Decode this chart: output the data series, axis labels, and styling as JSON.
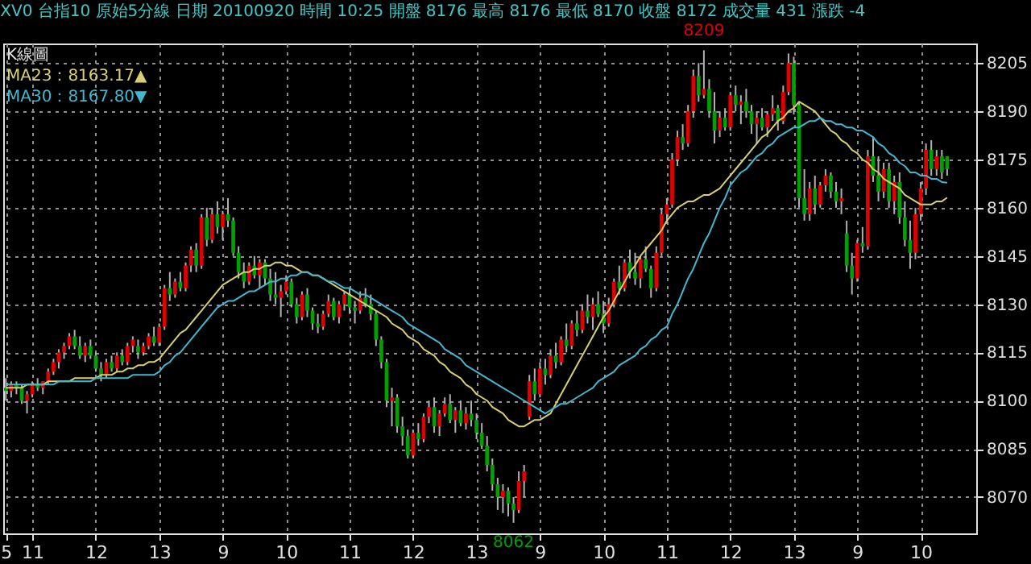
{
  "chart_data": {
    "type": "candlestick",
    "title": "XV0 台指10 原始5分線 日期 20100920 時間 10:25 開盤 8176 最高 8176 最低 8170 收盤 8172 成交量 431 漲跌 -4",
    "legend_title": "K線圖",
    "legend": "top left",
    "grid": true,
    "annotations": [
      {
        "text": "8209",
        "y": 8209
      },
      {
        "text": "8062",
        "y": 8062
      }
    ],
    "ylim": [
      8058.7,
      8211.1
    ],
    "yticks": [
      8070,
      8085,
      8100,
      8115,
      8130,
      8145,
      8160,
      8175,
      8190,
      8205
    ],
    "categories": [
      "5",
      null,
      null,
      null,
      null,
      "11",
      null,
      null,
      null,
      null,
      null,
      null,
      null,
      null,
      null,
      null,
      null,
      "12",
      null,
      null,
      null,
      null,
      null,
      null,
      null,
      null,
      null,
      null,
      null,
      "13",
      null,
      null,
      null,
      null,
      null,
      null,
      null,
      null,
      null,
      null,
      null,
      "9",
      null,
      null,
      null,
      null,
      null,
      null,
      null,
      null,
      null,
      null,
      null,
      "10",
      null,
      null,
      null,
      null,
      null,
      null,
      null,
      null,
      null,
      null,
      null,
      "11",
      null,
      null,
      null,
      null,
      null,
      null,
      null,
      null,
      null,
      null,
      null,
      "12",
      null,
      null,
      null,
      null,
      null,
      null,
      null,
      null,
      null,
      null,
      null,
      "13",
      null,
      null,
      null,
      null,
      null,
      null,
      null,
      null,
      null,
      null,
      null,
      "9",
      null,
      null,
      null,
      null,
      null,
      null,
      null,
      null,
      null,
      null,
      null,
      "10",
      null,
      null,
      null,
      null,
      null,
      null,
      null,
      null,
      null,
      null,
      null,
      "11",
      null,
      null,
      null,
      null,
      null,
      null,
      null,
      null,
      null,
      null,
      null,
      "12",
      null,
      null,
      null,
      null,
      null,
      null,
      null,
      null,
      null,
      null,
      null,
      "13",
      null,
      null,
      null,
      null,
      null,
      null,
      null,
      null,
      null,
      null,
      null,
      "9",
      null,
      null,
      null,
      null,
      null,
      null,
      null,
      null,
      null,
      null,
      null,
      "10",
      null,
      null,
      null,
      null,
      null
    ],
    "color": "#b0b0b0",
    "ohlc": [
      [
        8104,
        8107,
        8100,
        8103
      ],
      [
        8103,
        8106,
        8101,
        8105
      ],
      [
        8105,
        8106,
        8102,
        8104
      ],
      [
        8104,
        8105,
        8099,
        8100
      ],
      [
        8100,
        8103,
        8096,
        8102
      ],
      [
        8102,
        8106,
        8101,
        8105
      ],
      [
        8105,
        8107,
        8103,
        8104
      ],
      [
        8104,
        8106,
        8102,
        8106
      ],
      [
        8106,
        8110,
        8105,
        8109
      ],
      [
        8109,
        8113,
        8108,
        8112
      ],
      [
        8112,
        8116,
        8110,
        8115
      ],
      [
        8115,
        8118,
        8113,
        8117
      ],
      [
        8117,
        8121,
        8116,
        8120
      ],
      [
        8120,
        8122,
        8116,
        8117
      ],
      [
        8117,
        8120,
        8113,
        8114
      ],
      [
        8114,
        8118,
        8112,
        8117
      ],
      [
        8117,
        8119,
        8113,
        8114
      ],
      [
        8114,
        8115,
        8109,
        8110
      ],
      [
        8110,
        8112,
        8106,
        8108
      ],
      [
        8108,
        8113,
        8107,
        8112
      ],
      [
        8112,
        8114,
        8109,
        8110
      ],
      [
        8110,
        8115,
        8109,
        8114
      ],
      [
        8114,
        8116,
        8111,
        8112
      ],
      [
        8112,
        8118,
        8111,
        8117
      ],
      [
        8117,
        8120,
        8115,
        8119
      ],
      [
        8117,
        8119,
        8113,
        8115
      ],
      [
        8115,
        8118,
        8114,
        8117
      ],
      [
        8117,
        8121,
        8116,
        8120
      ],
      [
        8120,
        8123,
        8117,
        8118
      ],
      [
        8118,
        8124,
        8117,
        8123
      ],
      [
        8123,
        8136,
        8122,
        8135
      ],
      [
        8135,
        8140,
        8131,
        8133
      ],
      [
        8133,
        8138,
        8132,
        8137
      ],
      [
        8137,
        8140,
        8134,
        8135
      ],
      [
        8135,
        8143,
        8134,
        8142
      ],
      [
        8142,
        8148,
        8140,
        8147
      ],
      [
        8147,
        8149,
        8140,
        8142
      ],
      [
        8142,
        8158,
        8141,
        8157
      ],
      [
        8157,
        8160,
        8148,
        8150
      ],
      [
        8150,
        8160,
        8149,
        8158
      ],
      [
        8158,
        8162,
        8152,
        8154
      ],
      [
        8154,
        8159,
        8150,
        8158
      ],
      [
        8158,
        8163,
        8154,
        8156
      ],
      [
        8156,
        8157,
        8145,
        8146
      ],
      [
        8146,
        8148,
        8138,
        8140
      ],
      [
        8140,
        8143,
        8135,
        8137
      ],
      [
        8137,
        8143,
        8136,
        8142
      ],
      [
        8142,
        8145,
        8138,
        8139
      ],
      [
        8139,
        8144,
        8135,
        8143
      ],
      [
        8143,
        8144,
        8136,
        8138
      ],
      [
        8138,
        8141,
        8131,
        8133
      ],
      [
        8133,
        8140,
        8130,
        8132
      ],
      [
        8132,
        8136,
        8126,
        8134
      ],
      [
        8134,
        8139,
        8133,
        8137
      ],
      [
        8137,
        8138,
        8129,
        8130
      ],
      [
        8130,
        8132,
        8124,
        8126
      ],
      [
        8126,
        8134,
        8125,
        8133
      ],
      [
        8133,
        8135,
        8126,
        8128
      ],
      [
        8128,
        8129,
        8122,
        8124
      ],
      [
        8124,
        8127,
        8121,
        8123
      ],
      [
        8123,
        8128,
        8122,
        8127
      ],
      [
        8127,
        8133,
        8126,
        8131
      ],
      [
        8131,
        8132,
        8125,
        8126
      ],
      [
        8126,
        8131,
        8124,
        8130
      ],
      [
        8130,
        8134,
        8128,
        8133
      ],
      [
        8133,
        8135,
        8127,
        8129
      ],
      [
        8129,
        8131,
        8124,
        8128
      ],
      [
        8128,
        8134,
        8127,
        8132
      ],
      [
        8132,
        8135,
        8129,
        8130
      ],
      [
        8130,
        8133,
        8125,
        8127
      ],
      [
        8127,
        8128,
        8117,
        8119
      ],
      [
        8119,
        8120,
        8110,
        8112
      ],
      [
        8112,
        8113,
        8098,
        8100
      ],
      [
        8100,
        8104,
        8092,
        8101
      ],
      [
        8101,
        8102,
        8090,
        8092
      ],
      [
        8092,
        8095,
        8086,
        8089
      ],
      [
        8089,
        8091,
        8082,
        8083
      ],
      [
        8083,
        8091,
        8082,
        8090
      ],
      [
        8090,
        8093,
        8086,
        8088
      ],
      [
        8088,
        8096,
        8087,
        8095
      ],
      [
        8095,
        8100,
        8093,
        8098
      ],
      [
        8098,
        8101,
        8090,
        8092
      ],
      [
        8092,
        8097,
        8089,
        8096
      ],
      [
        8096,
        8101,
        8095,
        8099
      ],
      [
        8099,
        8102,
        8093,
        8094
      ],
      [
        8094,
        8098,
        8090,
        8097
      ],
      [
        8097,
        8100,
        8092,
        8093
      ],
      [
        8093,
        8098,
        8091,
        8096
      ],
      [
        8096,
        8100,
        8092,
        8094
      ],
      [
        8094,
        8096,
        8088,
        8090
      ],
      [
        8090,
        8093,
        8085,
        8086
      ],
      [
        8086,
        8089,
        8078,
        8080
      ],
      [
        8080,
        8082,
        8072,
        8074
      ],
      [
        8074,
        8076,
        8066,
        8070
      ],
      [
        8070,
        8074,
        8065,
        8072
      ],
      [
        8072,
        8073,
        8064,
        8068
      ],
      [
        8068,
        8070,
        8062,
        8066
      ],
      [
        8066,
        8078,
        8065,
        8075
      ],
      [
        8075,
        8080,
        8070,
        8078
      ],
      [
        8095,
        8108,
        8094,
        8106
      ],
      [
        8106,
        8110,
        8100,
        8102
      ],
      [
        8102,
        8112,
        8101,
        8110
      ],
      [
        8110,
        8113,
        8105,
        8108
      ],
      [
        8108,
        8116,
        8107,
        8114
      ],
      [
        8114,
        8118,
        8110,
        8112
      ],
      [
        8112,
        8120,
        8111,
        8119
      ],
      [
        8119,
        8124,
        8115,
        8117
      ],
      [
        8117,
        8125,
        8116,
        8124
      ],
      [
        8124,
        8128,
        8120,
        8122
      ],
      [
        8122,
        8130,
        8121,
        8128
      ],
      [
        8128,
        8133,
        8124,
        8126
      ],
      [
        8126,
        8132,
        8122,
        8130
      ],
      [
        8130,
        8134,
        8126,
        8127
      ],
      [
        8127,
        8131,
        8121,
        8124
      ],
      [
        8124,
        8132,
        8123,
        8130
      ],
      [
        8130,
        8138,
        8129,
        8137
      ],
      [
        8137,
        8142,
        8133,
        8135
      ],
      [
        8135,
        8144,
        8134,
        8143
      ],
      [
        8143,
        8147,
        8138,
        8140
      ],
      [
        8140,
        8146,
        8136,
        8138
      ],
      [
        8138,
        8145,
        8135,
        8144
      ],
      [
        8144,
        8148,
        8140,
        8141
      ],
      [
        8141,
        8142,
        8132,
        8135
      ],
      [
        8135,
        8148,
        8134,
        8146
      ],
      [
        8146,
        8160,
        8145,
        8158
      ],
      [
        8158,
        8163,
        8155,
        8161
      ],
      [
        8161,
        8177,
        8160,
        8175
      ],
      [
        8175,
        8184,
        8173,
        8182
      ],
      [
        8182,
        8186,
        8178,
        8180
      ],
      [
        8180,
        8192,
        8179,
        8190
      ],
      [
        8190,
        8203,
        8188,
        8201
      ],
      [
        8201,
        8205,
        8193,
        8195
      ],
      [
        8195,
        8209,
        8194,
        8197
      ],
      [
        8197,
        8200,
        8188,
        8190
      ],
      [
        8190,
        8196,
        8180,
        8184
      ],
      [
        8184,
        8190,
        8182,
        8188
      ],
      [
        8188,
        8191,
        8184,
        8185
      ],
      [
        8185,
        8196,
        8184,
        8195
      ],
      [
        8195,
        8198,
        8190,
        8192
      ],
      [
        8192,
        8195,
        8186,
        8193
      ],
      [
        8193,
        8197,
        8188,
        8190
      ],
      [
        8190,
        8192,
        8183,
        8186
      ],
      [
        8186,
        8190,
        8180,
        8188
      ],
      [
        8188,
        8191,
        8184,
        8185
      ],
      [
        8185,
        8190,
        8182,
        8189
      ],
      [
        8189,
        8195,
        8187,
        8191
      ],
      [
        8191,
        8192,
        8184,
        8187
      ],
      [
        8187,
        8198,
        8186,
        8196
      ],
      [
        8196,
        8208,
        8195,
        8205
      ],
      [
        8205,
        8207,
        8189,
        8192
      ],
      [
        8192,
        8193,
        8160,
        8163
      ],
      [
        8163,
        8172,
        8156,
        8158
      ],
      [
        8158,
        8168,
        8156,
        8166
      ],
      [
        8166,
        8170,
        8158,
        8161
      ],
      [
        8161,
        8168,
        8160,
        8167
      ],
      [
        8167,
        8172,
        8165,
        8170
      ],
      [
        8170,
        8171,
        8163,
        8165
      ],
      [
        8165,
        8168,
        8160,
        8162
      ],
      [
        8162,
        8166,
        8158,
        8163
      ],
      [
        8152,
        8156,
        8140,
        8142
      ],
      [
        8142,
        8146,
        8133,
        8138
      ],
      [
        8138,
        8150,
        8137,
        8149
      ],
      [
        8149,
        8154,
        8146,
        8148
      ],
      [
        8148,
        8178,
        8147,
        8176
      ],
      [
        8176,
        8182,
        8168,
        8170
      ],
      [
        8170,
        8176,
        8162,
        8165
      ],
      [
        8165,
        8174,
        8163,
        8172
      ],
      [
        8172,
        8174,
        8160,
        8162
      ],
      [
        8162,
        8170,
        8158,
        8168
      ],
      [
        8168,
        8171,
        8155,
        8157
      ],
      [
        8157,
        8162,
        8148,
        8150
      ],
      [
        8150,
        8156,
        8141,
        8146
      ],
      [
        8146,
        8160,
        8144,
        8158
      ],
      [
        8158,
        8168,
        8156,
        8166
      ],
      [
        8166,
        8180,
        8164,
        8178
      ],
      [
        8178,
        8181,
        8170,
        8172
      ],
      [
        8172,
        8178,
        8170,
        8176
      ],
      [
        8176,
        8178,
        8169,
        8171
      ],
      [
        8176,
        8176,
        8170,
        8172
      ]
    ],
    "colors": [
      "#00a000",
      "#e00000",
      "#00a000",
      "#00a000",
      "#e00000",
      "#e00000",
      "#00a000",
      "#e00000",
      "#e00000",
      "#e00000",
      "#e00000",
      "#e00000",
      "#e00000",
      "#00a000",
      "#00a000",
      "#e00000",
      "#00a000",
      "#00a000",
      "#00a000",
      "#e00000",
      "#00a000",
      "#e00000",
      "#00a000",
      "#e00000",
      "#e00000",
      "#00a000",
      "#e00000",
      "#e00000",
      "#00a000",
      "#e00000",
      "#e00000",
      "#00a000",
      "#e00000",
      "#00a000",
      "#e00000",
      "#e00000",
      "#00a000",
      "#e00000",
      "#00a000",
      "#e00000",
      "#00a000",
      "#e00000",
      "#00a000",
      "#00a000",
      "#00a000",
      "#00a000",
      "#e00000",
      "#00a000",
      "#e00000",
      "#00a000",
      "#00a000",
      "#00a000",
      "#e00000",
      "#e00000",
      "#00a000",
      "#00a000",
      "#e00000",
      "#00a000",
      "#00a000",
      "#00a000",
      "#e00000",
      "#e00000",
      "#00a000",
      "#e00000",
      "#e00000",
      "#00a000",
      "#00a000",
      "#e00000",
      "#00a000",
      "#00a000",
      "#00a000",
      "#00a000",
      "#00a000",
      "#e00000",
      "#00a000",
      "#00a000",
      "#00a000",
      "#e00000",
      "#00a000",
      "#e00000",
      "#e00000",
      "#00a000",
      "#e00000",
      "#e00000",
      "#00a000",
      "#e00000",
      "#00a000",
      "#e00000",
      "#00a000",
      "#00a000",
      "#00a000",
      "#00a000",
      "#00a000",
      "#00a000",
      "#e00000",
      "#00a000",
      "#00a000",
      "#e00000",
      "#e00000",
      "#e00000",
      "#00a000",
      "#e00000",
      "#00a000",
      "#e00000",
      "#00a000",
      "#e00000",
      "#00a000",
      "#e00000",
      "#00a000",
      "#e00000",
      "#00a000",
      "#e00000",
      "#00a000",
      "#00a000",
      "#e00000",
      "#e00000",
      "#00a000",
      "#e00000",
      "#00a000",
      "#00a000",
      "#e00000",
      "#00a000",
      "#00a000",
      "#e00000",
      "#e00000",
      "#e00000",
      "#e00000",
      "#e00000",
      "#00a000",
      "#e00000",
      "#e00000",
      "#00a000",
      "#e00000",
      "#00a000",
      "#00a000",
      "#e00000",
      "#00a000",
      "#e00000",
      "#00a000",
      "#e00000",
      "#00a000",
      "#00a000",
      "#e00000",
      "#00a000",
      "#e00000",
      "#e00000",
      "#00a000",
      "#e00000",
      "#e00000",
      "#00a000",
      "#00a000",
      "#00a000",
      "#e00000",
      "#00a000",
      "#e00000",
      "#e00000",
      "#00a000",
      "#00a000",
      "#e00000",
      "#00a000",
      "#00a000",
      "#e00000",
      "#00a000",
      "#e00000",
      "#00a000",
      "#00a000",
      "#e00000",
      "#00a000",
      "#e00000",
      "#00a000",
      "#00a000",
      "#00a000",
      "#e00000",
      "#e00000",
      "#e00000",
      "#00a000",
      "#e00000",
      "#00a000",
      "#00a000"
    ],
    "series": [
      {
        "type": "line",
        "name": "MA23：8163.17▲",
        "color": "#d8d070",
        "values": [
          8104,
          8104,
          8104,
          8104,
          8105,
          8105,
          8105,
          8105,
          8106,
          8106,
          8106,
          8106,
          8106,
          8107,
          8107,
          8107,
          8107,
          8107,
          8108,
          8108,
          8108,
          8109,
          8109,
          8110,
          8110,
          8111,
          8111,
          8112,
          8112,
          8113,
          8115,
          8117,
          8119,
          8121,
          8122,
          8124,
          8126,
          8128,
          8130,
          8132,
          8134,
          8136,
          8137,
          8138,
          8139,
          8140,
          8140,
          8141,
          8141,
          8142,
          8142,
          8143,
          8143,
          8142,
          8142,
          8141,
          8140,
          8140,
          8139,
          8139,
          8138,
          8137,
          8136,
          8135,
          8134,
          8133,
          8132,
          8131,
          8130,
          8129,
          8128,
          8127,
          8126,
          8124,
          8123,
          8122,
          8120,
          8119,
          8118,
          8116,
          8115,
          8114,
          8112,
          8111,
          8109,
          8108,
          8107,
          8105,
          8104,
          8102,
          8101,
          8100,
          8098,
          8097,
          8096,
          8094,
          8093,
          8092,
          8092,
          8093,
          8094,
          8094,
          8095,
          8096,
          8099,
          8102,
          8105,
          8108,
          8111,
          8114,
          8117,
          8120,
          8123,
          8126,
          8128,
          8131,
          8134,
          8137,
          8140,
          8142,
          8145,
          8147,
          8149,
          8151,
          8153,
          8156,
          8158,
          8160,
          8161,
          8162,
          8162,
          8163,
          8164,
          8164,
          8165,
          8166,
          8168,
          8170,
          8172,
          8174,
          8176,
          8178,
          8180,
          8182,
          8183,
          8185,
          8187,
          8188,
          8190,
          8191,
          8193,
          8192,
          8191,
          8190,
          8188,
          8186,
          8184,
          8183,
          8181,
          8180,
          8178,
          8177,
          8175,
          8174,
          8172,
          8171,
          8169,
          8168,
          8167,
          8166,
          8164,
          8163,
          8162,
          8161,
          8161,
          8161,
          8162,
          8162,
          8163.17
        ]
      },
      {
        "type": "line",
        "name": "MA30：8167.80▼",
        "color": "#40b8d0",
        "values": [
          8105,
          8105,
          8105,
          8105,
          8105,
          8105,
          8105,
          8105,
          8105,
          8105,
          8106,
          8106,
          8106,
          8106,
          8106,
          8106,
          8106,
          8107,
          8107,
          8107,
          8107,
          8107,
          8107,
          8107,
          8108,
          8108,
          8108,
          8108,
          8108,
          8109,
          8111,
          8112,
          8114,
          8115,
          8117,
          8119,
          8121,
          8123,
          8125,
          8127,
          8129,
          8130,
          8131,
          8131,
          8132,
          8133,
          8134,
          8134,
          8135,
          8136,
          8137,
          8137,
          8138,
          8138,
          8139,
          8139,
          8140,
          8140,
          8139,
          8139,
          8138,
          8137,
          8137,
          8136,
          8135,
          8135,
          8134,
          8133,
          8133,
          8132,
          8131,
          8130,
          8129,
          8128,
          8127,
          8126,
          8124,
          8123,
          8122,
          8121,
          8120,
          8119,
          8118,
          8116,
          8115,
          8114,
          8113,
          8111,
          8110,
          8109,
          8108,
          8107,
          8106,
          8105,
          8104,
          8103,
          8102,
          8101,
          8100,
          8099,
          8098,
          8097,
          8096,
          8097,
          8098,
          8099,
          8099,
          8100,
          8101,
          8102,
          8103,
          8104,
          8106,
          8107,
          8108,
          8109,
          8111,
          8112,
          8113,
          8114,
          8116,
          8117,
          8119,
          8120,
          8122,
          8123,
          8127,
          8130,
          8134,
          8138,
          8141,
          8145,
          8149,
          8152,
          8156,
          8160,
          8163,
          8167,
          8169,
          8171,
          8172,
          8174,
          8176,
          8177,
          8179,
          8180,
          8182,
          8183,
          8184,
          8185,
          8185,
          8186,
          8187,
          8187,
          8188,
          8187,
          8187,
          8186,
          8186,
          8185,
          8185,
          8184,
          8184,
          8183,
          8182,
          8180,
          8179,
          8177,
          8176,
          8174,
          8173,
          8171,
          8171,
          8170,
          8170,
          8169,
          8169,
          8168,
          8167.8
        ]
      }
    ]
  }
}
